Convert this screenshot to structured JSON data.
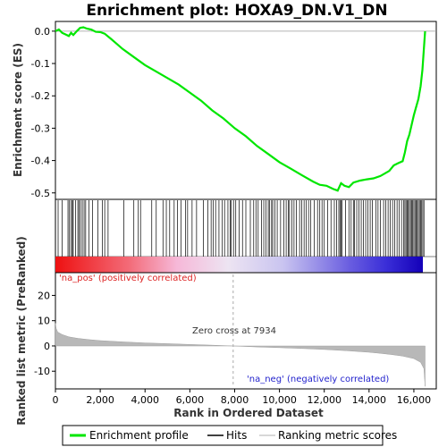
{
  "chart_data": {
    "type": "line",
    "title": "Enrichment plot: HOXA9_DN.V1_DN",
    "xlabel": "Rank in Ordered Dataset",
    "ylabel_top": "Enrichment score (ES)",
    "ylabel_bottom": "Ranked list metric (PreRanked)",
    "x_range": [
      0,
      17000
    ],
    "x_ticks": [
      0,
      2000,
      4000,
      6000,
      8000,
      10000,
      12000,
      14000,
      16000
    ],
    "x_tick_labels": [
      "0",
      "2,000",
      "4,000",
      "6,000",
      "8,000",
      "10,000",
      "12,000",
      "14,000",
      "16,000"
    ],
    "es_range": [
      -0.52,
      0.03
    ],
    "es_ticks": [
      0.0,
      -0.1,
      -0.2,
      -0.3,
      -0.4,
      -0.5
    ],
    "es_tick_labels": [
      "0.0",
      "-0.1",
      "-0.2",
      "-0.3",
      "-0.4",
      "-0.5"
    ],
    "metric_range": [
      -17,
      29
    ],
    "metric_ticks": [
      20,
      10,
      0,
      -10
    ],
    "metric_tick_labels": [
      "20",
      "10",
      "0",
      "-10"
    ],
    "enrichment_profile": {
      "name": "Enrichment profile",
      "color": "#00e600",
      "points": [
        [
          0,
          0.0
        ],
        [
          150,
          0.005
        ],
        [
          300,
          -0.005
        ],
        [
          450,
          -0.01
        ],
        [
          600,
          -0.015
        ],
        [
          700,
          -0.005
        ],
        [
          800,
          -0.012
        ],
        [
          950,
          0.0
        ],
        [
          1100,
          0.01
        ],
        [
          1250,
          0.012
        ],
        [
          1400,
          0.008
        ],
        [
          1600,
          0.005
        ],
        [
          1800,
          -0.002
        ],
        [
          2000,
          -0.003
        ],
        [
          2200,
          -0.008
        ],
        [
          2500,
          -0.025
        ],
        [
          3000,
          -0.055
        ],
        [
          3500,
          -0.08
        ],
        [
          4000,
          -0.105
        ],
        [
          4500,
          -0.125
        ],
        [
          5000,
          -0.145
        ],
        [
          5500,
          -0.165
        ],
        [
          6000,
          -0.19
        ],
        [
          6500,
          -0.215
        ],
        [
          7000,
          -0.245
        ],
        [
          7500,
          -0.27
        ],
        [
          8000,
          -0.3
        ],
        [
          8500,
          -0.325
        ],
        [
          9000,
          -0.355
        ],
        [
          9500,
          -0.38
        ],
        [
          10000,
          -0.405
        ],
        [
          10500,
          -0.425
        ],
        [
          11000,
          -0.445
        ],
        [
          11500,
          -0.465
        ],
        [
          11800,
          -0.475
        ],
        [
          12100,
          -0.478
        ],
        [
          12400,
          -0.488
        ],
        [
          12600,
          -0.493
        ],
        [
          12750,
          -0.47
        ],
        [
          12900,
          -0.478
        ],
        [
          13100,
          -0.482
        ],
        [
          13300,
          -0.468
        ],
        [
          13600,
          -0.462
        ],
        [
          13900,
          -0.458
        ],
        [
          14200,
          -0.455
        ],
        [
          14500,
          -0.448
        ],
        [
          14700,
          -0.44
        ],
        [
          14900,
          -0.432
        ],
        [
          15100,
          -0.415
        ],
        [
          15300,
          -0.408
        ],
        [
          15500,
          -0.402
        ],
        [
          15600,
          -0.375
        ],
        [
          15700,
          -0.34
        ],
        [
          15800,
          -0.32
        ],
        [
          15900,
          -0.29
        ],
        [
          16000,
          -0.26
        ],
        [
          16100,
          -0.235
        ],
        [
          16200,
          -0.21
        ],
        [
          16300,
          -0.17
        ],
        [
          16380,
          -0.12
        ],
        [
          16440,
          -0.06
        ],
        [
          16500,
          0.0
        ]
      ]
    },
    "hits_legend": "Hits",
    "hits": [
      120,
      300,
      560,
      620,
      700,
      760,
      790,
      900,
      1000,
      1050,
      1120,
      1200,
      1280,
      1350,
      1500,
      1650,
      1900,
      2100,
      2200,
      2350,
      3050,
      3500,
      3700,
      3800,
      4300,
      4500,
      4800,
      4950,
      5100,
      5300,
      5450,
      5600,
      5800,
      5900,
      6100,
      6300,
      6600,
      6800,
      6950,
      7050,
      7150,
      7300,
      7450,
      7550,
      7700,
      7800,
      7850,
      7950,
      8050,
      8200,
      8350,
      8500,
      8700,
      8850,
      8950,
      9050,
      9200,
      9300,
      9400,
      9500,
      9550,
      9650,
      9700,
      9800,
      9900,
      10050,
      10200,
      10300,
      10400,
      10450,
      10550,
      10650,
      10750,
      10900,
      11000,
      11100,
      11200,
      11300,
      11400,
      11550,
      11700,
      11800,
      11900,
      12000,
      12150,
      12300,
      12450,
      12550,
      12650,
      12700,
      12750,
      12800,
      12950,
      13100,
      13200,
      13300,
      13350,
      13450,
      13550,
      13650,
      13750,
      13850,
      13950,
      14050,
      14150,
      14300,
      14400,
      14500,
      14650,
      14750,
      14850,
      14950,
      15050,
      15150,
      15250,
      15350,
      15450,
      15550,
      15600,
      15650,
      15700,
      15750,
      15800,
      15850,
      15900,
      15950,
      16000,
      16050,
      16100,
      16150,
      16200,
      16250,
      16300,
      16350,
      16400,
      16450
    ],
    "ranking_metric": {
      "name": "Ranking metric scores",
      "color": "#b0b0b0",
      "points": [
        [
          0,
          9.0
        ],
        [
          30,
          7.0
        ],
        [
          100,
          5.5
        ],
        [
          300,
          4.5
        ],
        [
          600,
          3.6
        ],
        [
          1000,
          3.0
        ],
        [
          1500,
          2.5
        ],
        [
          2000,
          2.1
        ],
        [
          3000,
          1.6
        ],
        [
          4000,
          1.2
        ],
        [
          5000,
          0.9
        ],
        [
          6000,
          0.6
        ],
        [
          7000,
          0.3
        ],
        [
          7934,
          0.0
        ],
        [
          9000,
          -0.4
        ],
        [
          10000,
          -0.7
        ],
        [
          11000,
          -1.0
        ],
        [
          12000,
          -1.4
        ],
        [
          13000,
          -1.9
        ],
        [
          14000,
          -2.5
        ],
        [
          14500,
          -2.9
        ],
        [
          15000,
          -3.4
        ],
        [
          15500,
          -4.0
        ],
        [
          16000,
          -5.0
        ],
        [
          16300,
          -6.5
        ],
        [
          16450,
          -9.0
        ],
        [
          16500,
          -16.0
        ]
      ]
    },
    "zero_cross": 7934,
    "zero_cross_label": "Zero cross at 7934",
    "pos_label": "'na_pos' (positively correlated)",
    "neg_label": "'na_neg' (negatively correlated)",
    "pos_color": "#ee2222",
    "neg_color": "#2222cc",
    "grid": false,
    "legend_placement": "bottom",
    "legend_items": [
      "Enrichment profile",
      "Hits",
      "Ranking metric scores"
    ]
  }
}
